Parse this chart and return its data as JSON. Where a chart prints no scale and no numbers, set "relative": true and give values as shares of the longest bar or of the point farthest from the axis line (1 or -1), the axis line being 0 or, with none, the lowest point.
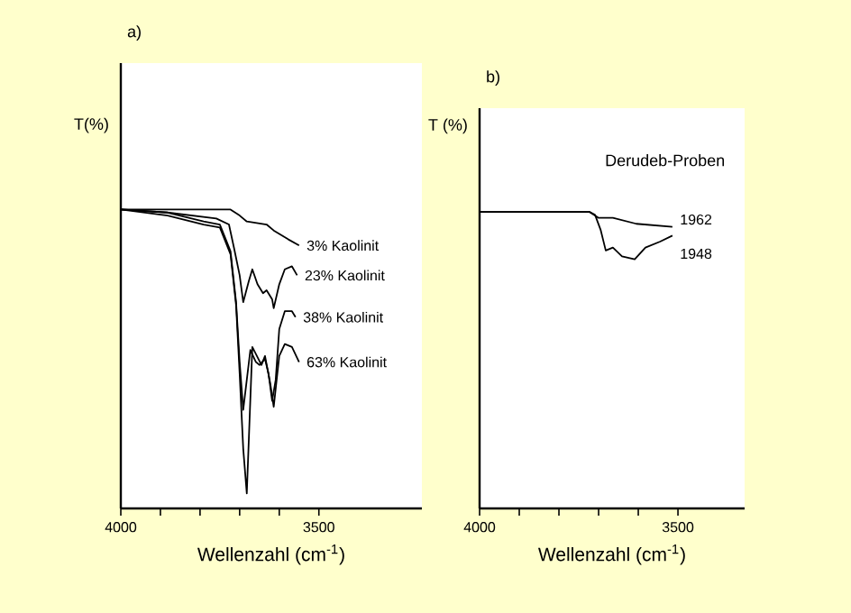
{
  "chart_data": [
    {
      "type": "line",
      "title": "a)",
      "xlabel": "Wellenzahl (cm$^{-1}$)",
      "ylabel": "T(%)",
      "relative": true,
      "xlim": [
        4000,
        3240
      ],
      "xticks": [
        4000,
        {
          "value": 3900,
          "label": null
        },
        {
          "value": 3800,
          "label": null
        },
        {
          "value": 3700,
          "label": null
        },
        {
          "value": 3600,
          "label": null
        },
        3500
      ],
      "series": [
        {
          "name": "3% Kaolinit",
          "color": "#000000",
          "x": [
            4000,
            3850,
            3723,
            3700,
            3682,
            3632,
            3614,
            3577,
            3550
          ],
          "values": [
            1,
            1,
            1,
            0.98,
            0.96,
            0.95,
            0.93,
            0.9,
            0.88
          ]
        },
        {
          "name": "23% Kaolinit",
          "color": "#000000",
          "x": [
            4000,
            3882,
            3759,
            3727,
            3714,
            3700,
            3691,
            3677,
            3668,
            3655,
            3641,
            3632,
            3618,
            3614,
            3600,
            3586,
            3568,
            3555
          ],
          "values": [
            1,
            0.99,
            0.97,
            0.95,
            0.87,
            0.78,
            0.69,
            0.76,
            0.8,
            0.75,
            0.72,
            0.73,
            0.7,
            0.67,
            0.75,
            0.8,
            0.81,
            0.78
          ]
        },
        {
          "name": "38% Kaolinit",
          "color": "#000000",
          "x": [
            4000,
            3882,
            3791,
            3750,
            3723,
            3709,
            3700,
            3691,
            3682,
            3673,
            3659,
            3650,
            3636,
            3627,
            3618,
            3609,
            3600,
            3586,
            3568,
            3559
          ],
          "values": [
            1,
            0.99,
            0.96,
            0.95,
            0.86,
            0.69,
            0.49,
            0.33,
            0.43,
            0.53,
            0.49,
            0.48,
            0.5,
            0.45,
            0.36,
            0.43,
            0.6,
            0.66,
            0.66,
            0.64
          ]
        },
        {
          "name": "63% Kaolinit",
          "color": "#000000",
          "x": [
            4000,
            3882,
            3791,
            3750,
            3723,
            3709,
            3700,
            3691,
            3682,
            3668,
            3645,
            3636,
            3623,
            3614,
            3600,
            3586,
            3568,
            3550
          ],
          "values": [
            1,
            0.98,
            0.95,
            0.94,
            0.85,
            0.68,
            0.45,
            0.2,
            0.05,
            0.54,
            0.48,
            0.51,
            0.42,
            0.34,
            0.51,
            0.55,
            0.54,
            0.49
          ]
        }
      ]
    },
    {
      "type": "line",
      "title": "b)",
      "xlabel": "Wellenzahl (cm$^{-1}$)",
      "ylabel": "T (%)",
      "relative": true,
      "xlim": [
        4000,
        3332
      ],
      "xticks": [
        4000,
        {
          "value": 3900,
          "label": null
        },
        {
          "value": 3800,
          "label": null
        },
        {
          "value": 3700,
          "label": null
        },
        {
          "value": 3600,
          "label": null
        },
        3500
      ],
      "annotations": [
        "Derudeb-Proben"
      ],
      "series": [
        {
          "name": "1962",
          "color": "#000000",
          "x": [
            4000,
            3723,
            3700,
            3664,
            3605,
            3514
          ],
          "values": [
            1,
            1,
            0.98,
            0.98,
            0.96,
            0.95
          ]
        },
        {
          "name": "1948",
          "color": "#000000",
          "x": [
            4000,
            3723,
            3709,
            3695,
            3682,
            3664,
            3641,
            3609,
            3582,
            3545,
            3514
          ],
          "values": [
            1,
            1,
            0.99,
            0.94,
            0.87,
            0.88,
            0.85,
            0.84,
            0.88,
            0.9,
            0.92
          ]
        }
      ]
    }
  ]
}
